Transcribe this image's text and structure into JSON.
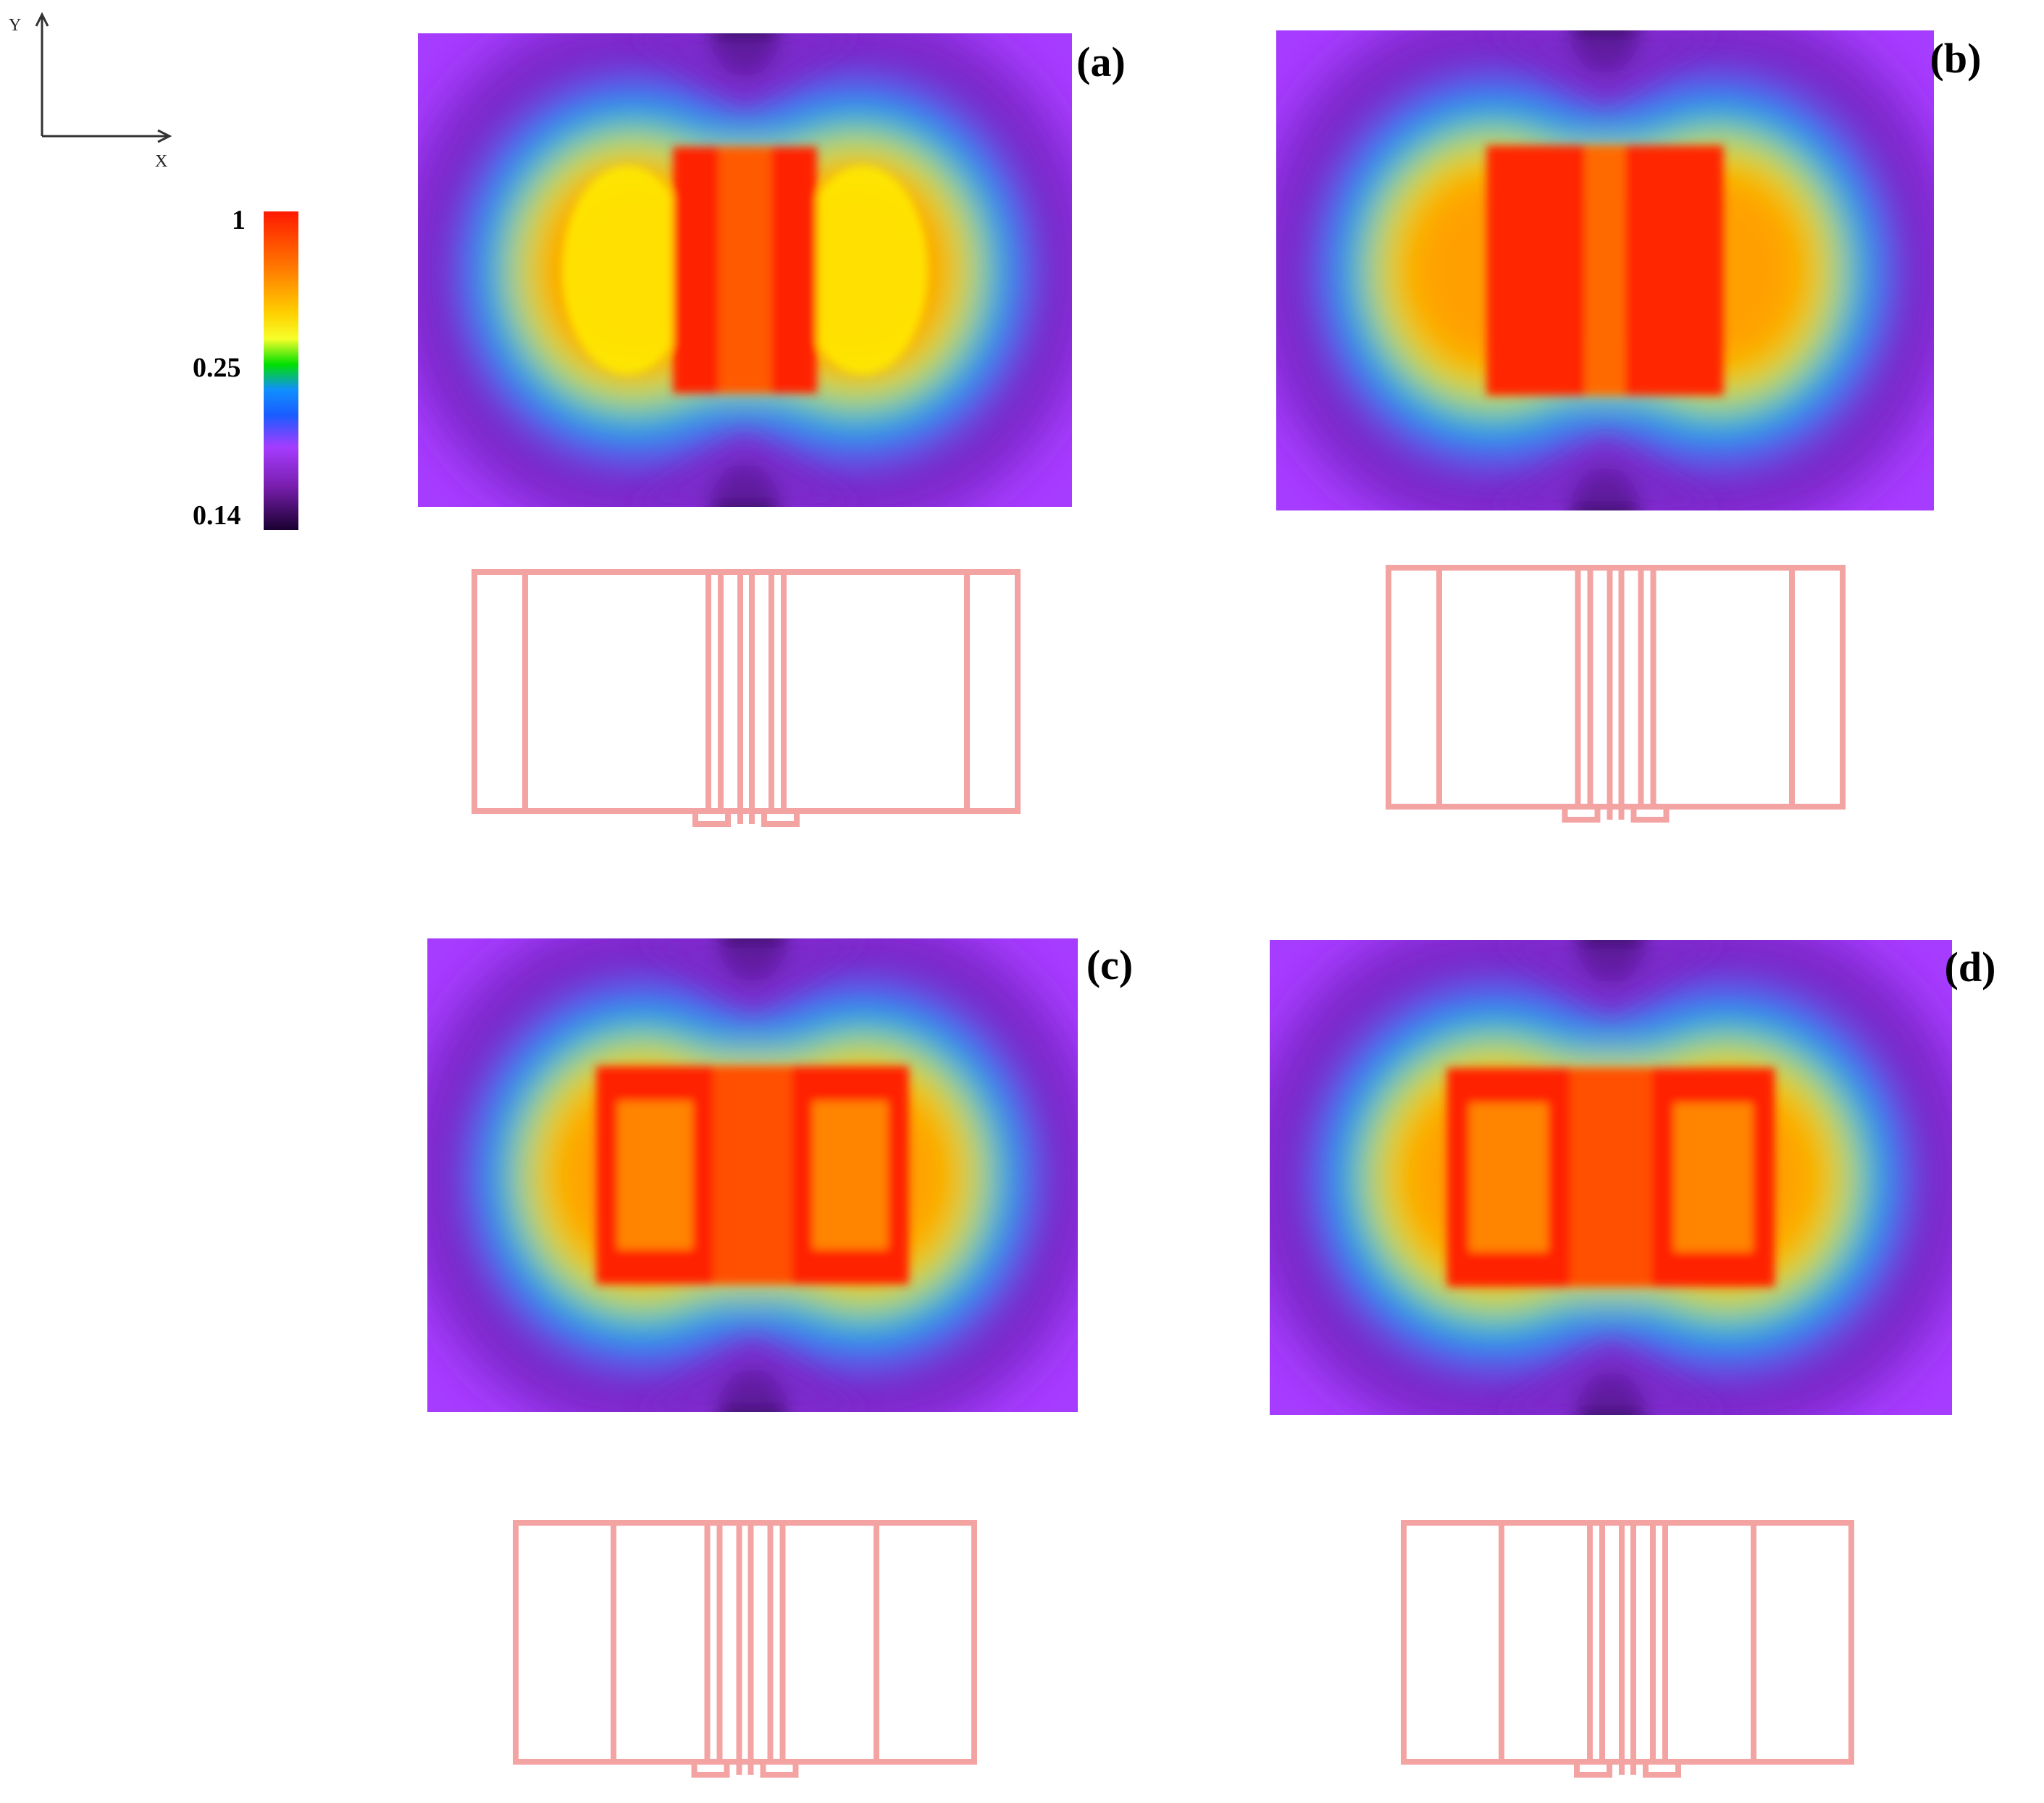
{
  "axes": {
    "x_label": "X",
    "y_label": "Y"
  },
  "colorbar": {
    "ticks": [
      "1",
      "0.25",
      "0.14"
    ]
  },
  "panels": [
    {
      "label": "(a)"
    },
    {
      "label": "(b)"
    },
    {
      "label": "(c)"
    },
    {
      "label": "(d)"
    }
  ],
  "colors": {
    "outline": "#f4a3a3",
    "colorbar": [
      "#ff1a00",
      "#ff7a00",
      "#ffd000",
      "#f6ff2a",
      "#00e000",
      "#1a5cff",
      "#a53cff",
      "#1a0030"
    ]
  }
}
